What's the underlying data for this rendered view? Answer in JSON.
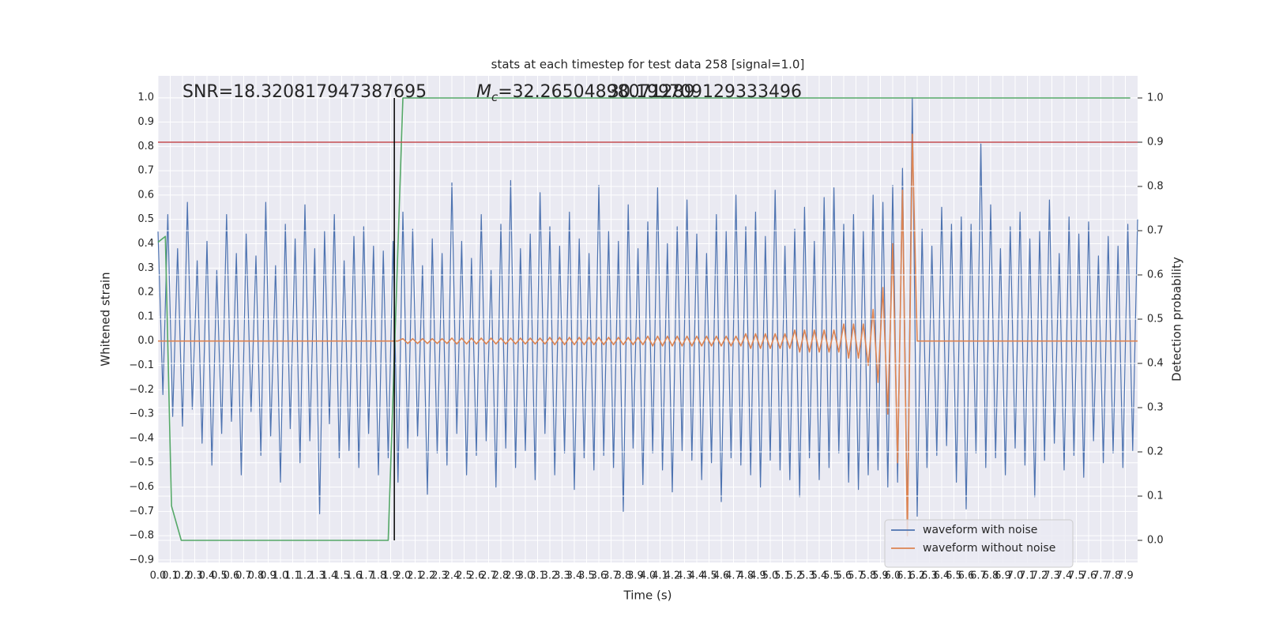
{
  "chart_data": {
    "type": "line",
    "title": "stats at each timestep for test data 258 [signal=1.0]",
    "xlabel": "Time (s)",
    "ylabel": "Whitened strain",
    "y2label": "Detection probability",
    "annotations": {
      "snr": "SNR=18.320817947387695",
      "mc_symbol": "M",
      "mc_subscript": "c",
      "mc_value": "=32.26504898071289",
      "extra": "30.199709129333496"
    },
    "x": [
      0,
      0.04,
      0.08,
      0.12,
      0.16,
      0.2,
      0.24,
      0.28,
      0.32,
      0.36,
      0.4,
      0.44,
      0.48,
      0.52,
      0.56,
      0.6,
      0.64,
      0.68,
      0.72,
      0.76,
      0.8,
      0.84,
      0.88,
      0.92,
      0.96,
      1,
      1.04,
      1.08,
      1.12,
      1.16,
      1.2,
      1.24,
      1.28,
      1.32,
      1.36,
      1.4,
      1.44,
      1.48,
      1.52,
      1.56,
      1.6,
      1.64,
      1.68,
      1.72,
      1.76,
      1.8,
      1.84,
      1.88,
      1.92,
      1.96,
      2,
      2.04,
      2.08,
      2.12,
      2.16,
      2.2,
      2.24,
      2.28,
      2.32,
      2.36,
      2.4,
      2.44,
      2.48,
      2.52,
      2.56,
      2.6,
      2.64,
      2.68,
      2.72,
      2.76,
      2.8,
      2.84,
      2.88,
      2.92,
      2.96,
      3,
      3.04,
      3.08,
      3.12,
      3.16,
      3.2,
      3.24,
      3.28,
      3.32,
      3.36,
      3.4,
      3.44,
      3.48,
      3.52,
      3.56,
      3.6,
      3.64,
      3.68,
      3.72,
      3.76,
      3.8,
      3.84,
      3.88,
      3.92,
      3.96,
      4,
      4.04,
      4.08,
      4.12,
      4.16,
      4.2,
      4.24,
      4.28,
      4.32,
      4.36,
      4.4,
      4.44,
      4.48,
      4.52,
      4.56,
      4.6,
      4.64,
      4.68,
      4.72,
      4.76,
      4.8,
      4.84,
      4.88,
      4.92,
      4.96,
      5,
      5.04,
      5.08,
      5.12,
      5.16,
      5.2,
      5.24,
      5.28,
      5.32,
      5.36,
      5.4,
      5.44,
      5.48,
      5.52,
      5.56,
      5.6,
      5.64,
      5.68,
      5.72,
      5.76,
      5.8,
      5.84,
      5.88,
      5.92,
      5.96,
      6,
      6.04,
      6.08,
      6.12,
      6.16,
      6.2,
      6.24,
      6.28,
      6.32,
      6.36,
      6.4,
      6.44,
      6.48,
      6.52,
      6.56,
      6.6,
      6.64,
      6.68,
      6.72,
      6.76,
      6.8,
      6.84,
      6.88,
      6.92,
      6.96,
      7,
      7.04,
      7.08,
      7.12,
      7.16,
      7.2,
      7.24,
      7.28,
      7.32,
      7.36,
      7.4,
      7.44,
      7.48,
      7.52,
      7.56,
      7.6,
      7.64,
      7.68,
      7.72,
      7.76,
      7.8,
      7.84,
      7.88,
      7.92,
      7.96,
      8
    ],
    "series": [
      {
        "name": "waveform with noise",
        "color": "#4c72b0",
        "values": [
          0.45,
          -0.22,
          0.52,
          -0.31,
          0.38,
          -0.35,
          0.57,
          -0.28,
          0.33,
          -0.42,
          0.41,
          -0.51,
          0.29,
          -0.38,
          0.52,
          -0.33,
          0.36,
          -0.55,
          0.44,
          -0.29,
          0.35,
          -0.47,
          0.57,
          -0.39,
          0.31,
          -0.58,
          0.48,
          -0.36,
          0.42,
          -0.5,
          0.56,
          -0.41,
          0.38,
          -0.71,
          0.45,
          -0.34,
          0.52,
          -0.48,
          0.33,
          -0.45,
          0.43,
          -0.52,
          0.47,
          -0.38,
          0.39,
          -0.55,
          0.37,
          -0.48,
          0.41,
          -0.58,
          0.53,
          -0.44,
          0.46,
          -0.39,
          0.31,
          -0.63,
          0.42,
          -0.46,
          0.36,
          -0.51,
          0.65,
          -0.38,
          0.41,
          -0.55,
          0.34,
          -0.47,
          0.52,
          -0.41,
          0.29,
          -0.6,
          0.48,
          -0.44,
          0.66,
          -0.52,
          0.38,
          -0.45,
          0.44,
          -0.57,
          0.61,
          -0.38,
          0.47,
          -0.55,
          0.39,
          -0.46,
          0.53,
          -0.61,
          0.42,
          -0.48,
          0.36,
          -0.53,
          0.64,
          -0.47,
          0.45,
          -0.52,
          0.41,
          -0.7,
          0.56,
          -0.44,
          0.38,
          -0.59,
          0.49,
          -0.46,
          0.63,
          -0.53,
          0.4,
          -0.62,
          0.47,
          -0.45,
          0.58,
          -0.49,
          0.44,
          -0.57,
          0.36,
          -0.5,
          0.52,
          -0.66,
          0.45,
          -0.48,
          0.6,
          -0.51,
          0.47,
          -0.55,
          0.53,
          -0.6,
          0.43,
          -0.49,
          0.62,
          -0.53,
          0.39,
          -0.57,
          0.46,
          -0.64,
          0.55,
          -0.48,
          0.41,
          -0.57,
          0.59,
          -0.52,
          0.63,
          -0.46,
          0.48,
          -0.58,
          0.52,
          -0.61,
          0.45,
          -0.55,
          0.6,
          -0.53,
          0.57,
          -0.6,
          0.64,
          -0.58,
          0.71,
          -0.74,
          1.0,
          -0.72,
          0.46,
          -0.52,
          0.39,
          -0.47,
          0.55,
          -0.43,
          0.48,
          -0.58,
          0.51,
          -0.69,
          0.48,
          -0.46,
          0.81,
          -0.52,
          0.56,
          -0.48,
          0.38,
          -0.55,
          0.47,
          -0.44,
          0.53,
          -0.51,
          0.42,
          -0.64,
          0.45,
          -0.49,
          0.58,
          -0.42,
          0.36,
          -0.53,
          0.51,
          -0.47,
          0.44,
          -0.56,
          0.49,
          -0.41,
          0.35,
          -0.5,
          0.43,
          -0.46,
          0.39,
          -0.52,
          0.48,
          -0.45,
          0.5
        ]
      },
      {
        "name": "waveform without noise",
        "color": "#dd8452",
        "values": [
          0,
          0,
          0,
          0,
          0,
          0,
          0,
          0,
          0,
          0,
          0,
          0,
          0,
          0,
          0,
          0,
          0,
          0,
          0,
          0,
          0,
          0,
          0,
          0,
          0,
          0,
          0,
          0,
          0,
          0,
          0,
          0,
          0,
          0,
          0,
          0,
          0,
          0,
          0,
          0,
          0,
          0,
          0,
          0,
          0,
          0,
          0,
          0,
          0,
          0,
          0.01,
          -0.01,
          0.01,
          -0.01,
          0.01,
          -0.01,
          0.01,
          -0.01,
          0.01,
          -0.01,
          0.012,
          -0.012,
          0.012,
          -0.012,
          0.012,
          -0.012,
          0.012,
          -0.012,
          0.012,
          -0.012,
          0.012,
          -0.012,
          0.012,
          -0.012,
          0.012,
          -0.012,
          0.012,
          -0.012,
          0.012,
          -0.012,
          0.015,
          -0.015,
          0.015,
          -0.015,
          0.015,
          -0.015,
          0.015,
          -0.015,
          0.015,
          -0.015,
          0.015,
          -0.015,
          0.015,
          -0.015,
          0.015,
          -0.015,
          0.015,
          -0.015,
          0.015,
          -0.015,
          0.02,
          -0.02,
          0.02,
          -0.02,
          0.02,
          -0.02,
          0.02,
          -0.02,
          0.02,
          -0.02,
          0.02,
          -0.02,
          0.02,
          -0.02,
          0.02,
          -0.02,
          0.02,
          -0.02,
          0.02,
          -0.02,
          0.03,
          -0.03,
          0.03,
          -0.03,
          0.03,
          -0.03,
          0.03,
          -0.03,
          0.03,
          -0.03,
          0.045,
          -0.045,
          0.045,
          -0.045,
          0.045,
          -0.045,
          0.045,
          -0.045,
          0.045,
          -0.045,
          0.07,
          -0.07,
          0.07,
          -0.07,
          0.07,
          -0.1,
          0.13,
          -0.17,
          0.22,
          -0.3,
          0.4,
          -0.5,
          0.62,
          -0.8,
          0.85,
          0,
          0,
          0,
          0,
          0,
          0,
          0,
          0,
          0,
          0,
          0,
          0,
          0,
          0,
          0,
          0,
          0,
          0,
          0,
          0,
          0,
          0,
          0,
          0,
          0,
          0,
          0,
          0,
          0,
          0,
          0,
          0,
          0,
          0,
          0,
          0,
          0,
          0,
          0,
          0,
          0,
          0,
          0,
          0,
          0,
          0
        ]
      }
    ],
    "probability": {
      "color": "#55a868",
      "axis": "y2",
      "x": [
        0,
        0.06,
        0.11,
        0.19,
        1.88,
        2.0,
        7.94
      ],
      "values": [
        0.674,
        0.687,
        0.078,
        0,
        0,
        1,
        1
      ]
    },
    "threshold": {
      "value": 0.9,
      "color": "#c44e52",
      "axis": "y2"
    },
    "marker": {
      "x": 1.93,
      "ymin": 0,
      "ymax": 1,
      "color": "#000000",
      "axis": "y2"
    },
    "xlim": [
      0,
      8
    ],
    "ylim": [
      -0.91,
      1.09
    ],
    "y2lim": [
      -0.05,
      1.05
    ],
    "xticks": [
      {
        "value": 0,
        "label": "0.0"
      },
      0.1,
      0.2,
      0.3,
      0.4,
      0.5,
      0.6,
      0.7,
      0.8,
      0.9,
      {
        "value": 1,
        "label": "1.0"
      },
      1.1,
      1.2,
      1.3,
      1.4,
      1.5,
      1.6,
      1.7,
      1.8,
      1.9,
      {
        "value": 2,
        "label": "2.0"
      },
      2.1,
      2.2,
      2.3,
      2.4,
      2.5,
      2.6,
      2.7,
      2.8,
      2.9,
      {
        "value": 3,
        "label": "3.0"
      },
      3.1,
      3.2,
      3.3,
      3.4,
      3.5,
      3.6,
      3.7,
      3.8,
      3.9,
      {
        "value": 4,
        "label": "4.0"
      },
      4.1,
      4.2,
      4.3,
      4.4,
      4.5,
      4.6,
      4.7,
      4.8,
      4.9,
      {
        "value": 5,
        "label": "5.0"
      },
      5.1,
      5.2,
      5.3,
      5.4,
      5.5,
      5.6,
      5.7,
      5.8,
      5.9,
      {
        "value": 6,
        "label": "6.0"
      },
      6.1,
      6.2,
      6.3,
      6.4,
      6.5,
      6.6,
      6.7,
      6.8,
      6.9,
      {
        "value": 7,
        "label": "7.0"
      },
      7.1,
      7.2,
      7.3,
      7.4,
      7.5,
      7.6,
      7.7,
      7.8,
      7.9
    ],
    "yticks": [
      {
        "value": -0.9,
        "label": "−0.9"
      },
      {
        "value": -0.8,
        "label": "−0.8"
      },
      {
        "value": -0.7,
        "label": "−0.7"
      },
      {
        "value": -0.6,
        "label": "−0.6"
      },
      {
        "value": -0.5,
        "label": "−0.5"
      },
      {
        "value": -0.4,
        "label": "−0.4"
      },
      {
        "value": -0.3,
        "label": "−0.3"
      },
      {
        "value": -0.2,
        "label": "−0.2"
      },
      {
        "value": -0.1,
        "label": "−0.1"
      },
      {
        "value": 0,
        "label": "0.0"
      },
      0.1,
      0.2,
      0.3,
      0.4,
      0.5,
      0.6,
      0.7,
      0.8,
      0.9,
      {
        "value": 1,
        "label": "1.0"
      }
    ],
    "y2ticks": [
      {
        "value": 0,
        "label": "0.0"
      },
      0.1,
      0.2,
      0.3,
      0.4,
      0.5,
      0.6,
      0.7,
      0.8,
      0.9,
      {
        "value": 1,
        "label": "1.0"
      }
    ],
    "grid": true,
    "grid_color": "#ffffff",
    "background": "#eaeaf2",
    "legend": "lower right"
  }
}
